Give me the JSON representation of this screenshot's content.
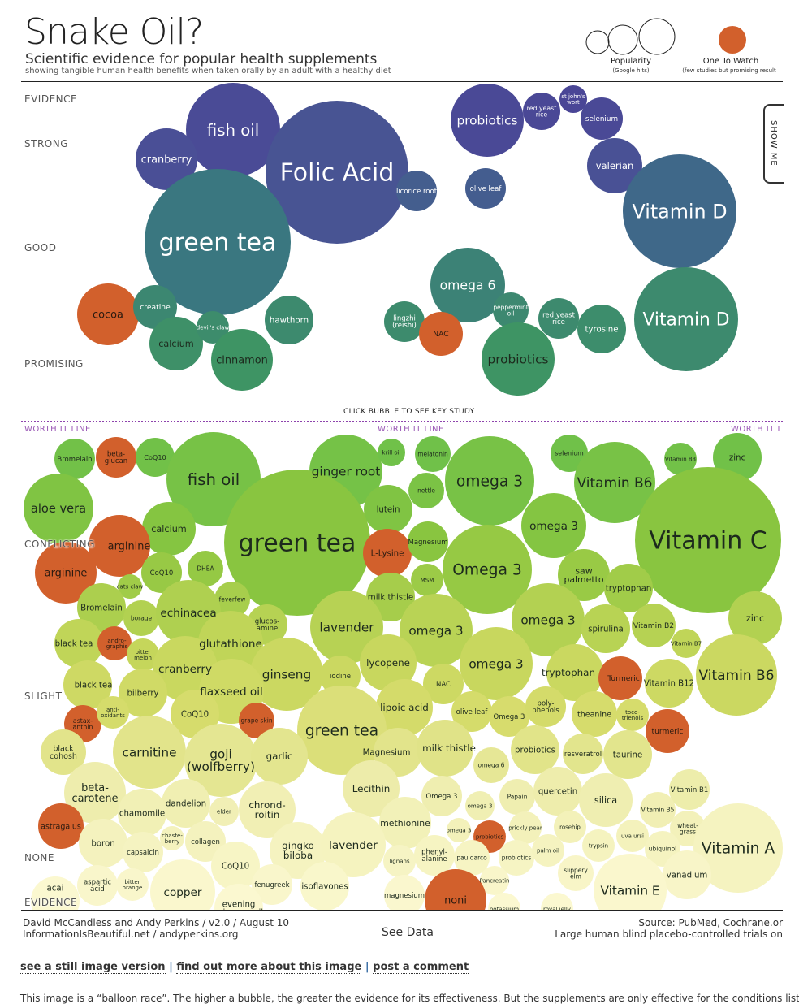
{
  "header": {
    "title": "Snake Oil?",
    "subtitle": "Scientific evidence for popular health supplements",
    "tagline": "showing tangible human health benefits when taken orally by an adult with a healthy diet"
  },
  "legend": {
    "popularity": "Popularity",
    "popularity_sub": "(Google hits)",
    "watch": "One To Watch",
    "watch_sub": "(few studies but promising result"
  },
  "colors": {
    "one_to_watch": "#d2602c",
    "strong": "#4a4496",
    "good": "#3a7582",
    "promising": "#3f9a5f",
    "conflicting": "#8cc63f",
    "slight": "#d6dc6c",
    "none": "#fbf8d0",
    "worth_it_line": "#8e44ad"
  },
  "show_me": "SHOW ME",
  "click_hint": "CLICK BUBBLE TO SEE KEY STUDY",
  "worth_it_label": "WORTH IT LINE",
  "chart_data": {
    "type": "bubble",
    "title": "Snake Oil?",
    "y_axis_levels": [
      "EVIDENCE",
      "STRONG",
      "GOOD",
      "PROMISING",
      "CONFLICTING",
      "SLIGHT",
      "NONE",
      "EVIDENCE"
    ],
    "size_encodes": "Popularity (Google hits)",
    "above_line": [
      {
        "label": "fish oil"
      },
      {
        "label": "Folic Acid"
      },
      {
        "label": "cranberry"
      },
      {
        "label": "green tea"
      },
      {
        "label": "licorice root"
      },
      {
        "label": "probiotics"
      },
      {
        "label": "red yeast\nrice"
      },
      {
        "label": "st john's\nwort"
      },
      {
        "label": "selenium"
      },
      {
        "label": "olive leaf"
      },
      {
        "label": "valerian"
      },
      {
        "label": "Vitamin D"
      },
      {
        "label": "omega 6"
      },
      {
        "label": "peppermint\noil"
      },
      {
        "label": "lingzhi\n(reishi)"
      },
      {
        "label": "NAC",
        "watch": true
      },
      {
        "label": "probiotics"
      },
      {
        "label": "red yeast\nrice"
      },
      {
        "label": "tyrosine"
      },
      {
        "label": "Vitamin D"
      },
      {
        "label": "cocoa",
        "watch": true
      },
      {
        "label": "creatine"
      },
      {
        "label": "calcium"
      },
      {
        "label": "devil's claw"
      },
      {
        "label": "hawthorn"
      },
      {
        "label": "cinnamon"
      }
    ],
    "below_line": [
      {
        "label": "Bromelain"
      },
      {
        "label": "beta-\nglucan",
        "watch": true
      },
      {
        "label": "CoQ10"
      },
      {
        "label": "fish oil"
      },
      {
        "label": "aloe vera"
      },
      {
        "label": "ginger root"
      },
      {
        "label": "krill oil"
      },
      {
        "label": "melatonin"
      },
      {
        "label": "nettle"
      },
      {
        "label": "omega 3"
      },
      {
        "label": "selenium"
      },
      {
        "label": "Vitamin B6"
      },
      {
        "label": "Vitamin B3"
      },
      {
        "label": "zinc"
      },
      {
        "label": "lutein"
      },
      {
        "label": "calcium"
      },
      {
        "label": "arginine",
        "watch": true
      },
      {
        "label": "arginine",
        "watch": true
      },
      {
        "label": "green tea"
      },
      {
        "label": "L-Lysine",
        "watch": true
      },
      {
        "label": "Magnesium"
      },
      {
        "label": "omega 3"
      },
      {
        "label": "Vitamin C"
      },
      {
        "label": "Omega 3"
      },
      {
        "label": "MSM"
      },
      {
        "label": "saw\npalmetto"
      },
      {
        "label": "tryptophan"
      },
      {
        "label": "CoQ10"
      },
      {
        "label": "DHEA"
      },
      {
        "label": "cats claw"
      },
      {
        "label": "feverfew"
      },
      {
        "label": "milk thistle"
      },
      {
        "label": "Bromelain"
      },
      {
        "label": "borage"
      },
      {
        "label": "echinacea"
      },
      {
        "label": "glucos-\namine"
      },
      {
        "label": "lavender"
      },
      {
        "label": "omega 3"
      },
      {
        "label": "omega 3"
      },
      {
        "label": "spirulina"
      },
      {
        "label": "Vitamin B2"
      },
      {
        "label": "zinc"
      },
      {
        "label": "black tea"
      },
      {
        "label": "andro-\ngraphis",
        "watch": true
      },
      {
        "label": "bitter\nmelon"
      },
      {
        "label": "glutathione"
      },
      {
        "label": "Vitamin B7"
      },
      {
        "label": "lycopene"
      },
      {
        "label": "cranberry"
      },
      {
        "label": "ginseng"
      },
      {
        "label": "iodine"
      },
      {
        "label": "omega 3"
      },
      {
        "label": "tryptophan"
      },
      {
        "label": "Turmeric",
        "watch": true
      },
      {
        "label": "Vitamin B12"
      },
      {
        "label": "Vitamin B6"
      },
      {
        "label": "black tea"
      },
      {
        "label": "bilberry"
      },
      {
        "label": "flaxseed oil"
      },
      {
        "label": "NAC"
      },
      {
        "label": "lipoic acid"
      },
      {
        "label": "olive leaf"
      },
      {
        "label": "Omega 3"
      },
      {
        "label": "poly-\nphenols"
      },
      {
        "label": "theanine"
      },
      {
        "label": "toco-\ntrienols"
      },
      {
        "label": "astax-\nanthin",
        "watch": true
      },
      {
        "label": "anti-\noxidants"
      },
      {
        "label": "CoQ10"
      },
      {
        "label": "grape skin",
        "watch": true
      },
      {
        "label": "green tea"
      },
      {
        "label": "turmeric",
        "watch": true
      },
      {
        "label": "black\ncohosh"
      },
      {
        "label": "carnitine"
      },
      {
        "label": "goji\n(wolfberry)"
      },
      {
        "label": "garlic"
      },
      {
        "label": "Magnesium"
      },
      {
        "label": "milk thistle"
      },
      {
        "label": "probiotics"
      },
      {
        "label": "resveratrol"
      },
      {
        "label": "taurine"
      },
      {
        "label": "omega 6"
      },
      {
        "label": "beta-\ncarotene"
      },
      {
        "label": "dandelion"
      },
      {
        "label": "chamomile"
      },
      {
        "label": "elder"
      },
      {
        "label": "chrond-\nroitin"
      },
      {
        "label": "Lecithin"
      },
      {
        "label": "Omega 3"
      },
      {
        "label": "Papain"
      },
      {
        "label": "quercetin"
      },
      {
        "label": "silica"
      },
      {
        "label": "Vitamin B1"
      },
      {
        "label": "omega 3"
      },
      {
        "label": "Vitamin B5"
      },
      {
        "label": "astragalus",
        "watch": true
      },
      {
        "label": "chaste-\nberry"
      },
      {
        "label": "collagen"
      },
      {
        "label": "boron"
      },
      {
        "label": "capsaicin"
      },
      {
        "label": "methionine"
      },
      {
        "label": "omega 3"
      },
      {
        "label": "probiotics",
        "watch": true
      },
      {
        "label": "prickly pear"
      },
      {
        "label": "rosehip"
      },
      {
        "label": "wheat-\ngrass"
      },
      {
        "label": "uva ursi"
      },
      {
        "label": "trypsin"
      },
      {
        "label": "ubiquinol"
      },
      {
        "label": "Vitamin A"
      },
      {
        "label": "gingko\nbiloba"
      },
      {
        "label": "lavender"
      },
      {
        "label": "lignans"
      },
      {
        "label": "phenyl-\nalanine"
      },
      {
        "label": "pau darco"
      },
      {
        "label": "probiotics"
      },
      {
        "label": "palm oil"
      },
      {
        "label": "CoQ10"
      },
      {
        "label": "slippery\nelm"
      },
      {
        "label": "vanadium"
      },
      {
        "label": "fenugreek"
      },
      {
        "label": "isoflavones"
      },
      {
        "label": "aspartic\nacid"
      },
      {
        "label": "bitter\norange"
      },
      {
        "label": "copper"
      },
      {
        "label": "Pancreatin"
      },
      {
        "label": "magnesium"
      },
      {
        "label": "noni",
        "watch": true
      },
      {
        "label": "Vitamin E"
      },
      {
        "label": "acai"
      },
      {
        "label": "evening\nprimrose oil"
      },
      {
        "label": "potassium"
      },
      {
        "label": "royal jelly"
      }
    ]
  },
  "footer": {
    "credit": "David McCandless and Andy Perkins / v2.0 / August 10",
    "site": "InformationIsBeautiful.net / andyperkins.org",
    "see_data": "See Data",
    "source": "Source: PubMed, Cochrane.or",
    "source_sub": "Large human blind placebo-controlled trials on"
  },
  "links": {
    "still": "see a still image version",
    "more": "find out more about this image",
    "comment": "post a comment",
    "sep": "|"
  },
  "paragraph": "This image is a “balloon race”. The higher a bubble, the greater the evidence for its effectiveness. But the supplements are only effective for the conditions listed"
}
